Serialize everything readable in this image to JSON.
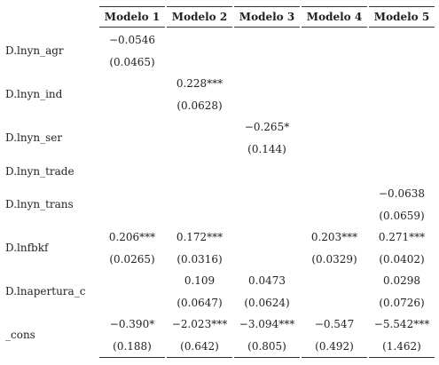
{
  "table": {
    "columns": [
      "Modelo 1",
      "Modelo 2",
      "Modelo 3",
      "Modelo 4",
      "Modelo 5"
    ],
    "rows": [
      {
        "label": "D.lnyn_agr",
        "coef": [
          "−0.0546",
          null,
          null,
          null,
          null
        ],
        "se": [
          "(0.0465)",
          null,
          null,
          null,
          null
        ]
      },
      {
        "label": "D.lnyn_ind",
        "coef": [
          null,
          "0.228***",
          null,
          null,
          null
        ],
        "se": [
          null,
          "(0.0628)",
          null,
          null,
          null
        ]
      },
      {
        "label": "D.lnyn_ser",
        "coef": [
          null,
          null,
          "−0.265*",
          null,
          null
        ],
        "se": [
          null,
          null,
          "(0.144)",
          null,
          null
        ]
      },
      {
        "label": "D.lnyn_trade",
        "coef": [
          null,
          null,
          null,
          null,
          null
        ],
        "se": [
          null,
          null,
          null,
          null,
          null
        ]
      },
      {
        "label": "D.lnyn_trans",
        "coef": [
          null,
          null,
          null,
          null,
          "−0.0638"
        ],
        "se": [
          null,
          null,
          null,
          null,
          "(0.0659)"
        ]
      },
      {
        "label": "D.lnfbkf",
        "coef": [
          "0.206***",
          "0.172***",
          null,
          "0.203***",
          "0.271***"
        ],
        "se": [
          "(0.0265)",
          "(0.0316)",
          null,
          "(0.0329)",
          "(0.0402)"
        ]
      },
      {
        "label": "D.lnapertura_c",
        "coef": [
          null,
          "0.109",
          "0.0473",
          null,
          "0.0298"
        ],
        "se": [
          null,
          "(0.0647)",
          "(0.0624)",
          null,
          "(0.0726)"
        ]
      },
      {
        "label": "_cons",
        "coef": [
          "−0.390*",
          "−2.023***",
          "−3.094***",
          "−0.547",
          "−5.542***"
        ],
        "se": [
          "(0.188)",
          "(0.642)",
          "(0.805)",
          "(0.492)",
          "(1.462)"
        ]
      }
    ]
  }
}
